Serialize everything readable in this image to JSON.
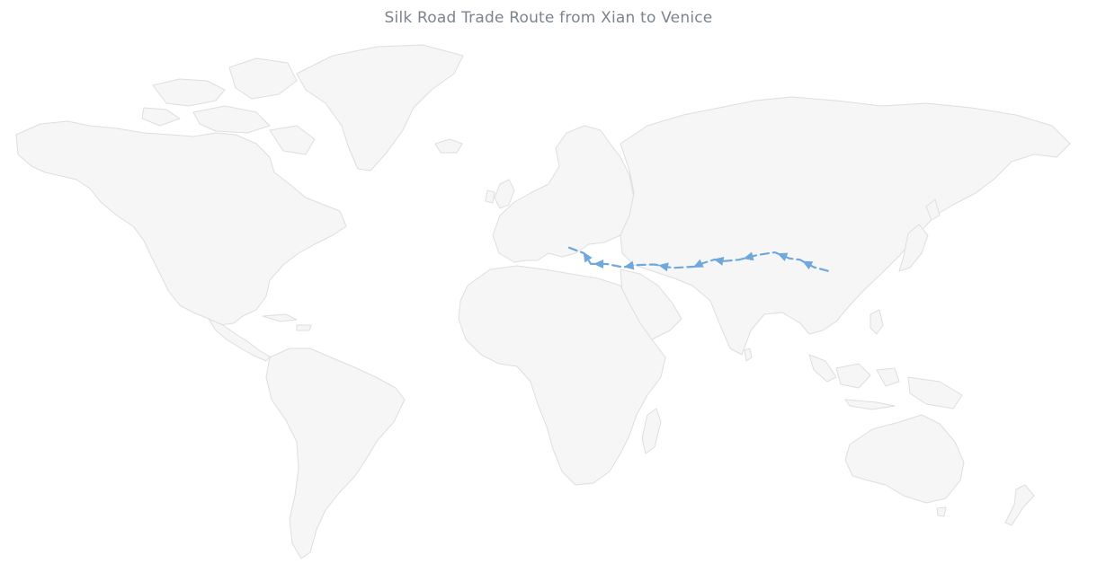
{
  "map": {
    "title": "Silk Road Trade Route from Xian to Venice",
    "route_color": "#6fa8dc",
    "land_color": "#f6f6f6",
    "border_color": "#dedede",
    "route_stops_latlon": [
      [
        34.3,
        108.9
      ],
      [
        36.0,
        103.8
      ],
      [
        39.5,
        98.5
      ],
      [
        40.1,
        94.7
      ],
      [
        42.9,
        89.2
      ],
      [
        41.7,
        82.9
      ],
      [
        39.5,
        76.0
      ],
      [
        38.8,
        70.0
      ],
      [
        39.6,
        66.9
      ],
      [
        37.6,
        61.8
      ],
      [
        36.3,
        59.6
      ],
      [
        35.7,
        51.4
      ],
      [
        37.3,
        44.5
      ],
      [
        37.0,
        37.4
      ],
      [
        36.0,
        33.0
      ],
      [
        37.5,
        27.0
      ],
      [
        37.6,
        21.0
      ],
      [
        39.6,
        20.0
      ],
      [
        42.5,
        18.5
      ],
      [
        45.4,
        12.3
      ]
    ]
  }
}
